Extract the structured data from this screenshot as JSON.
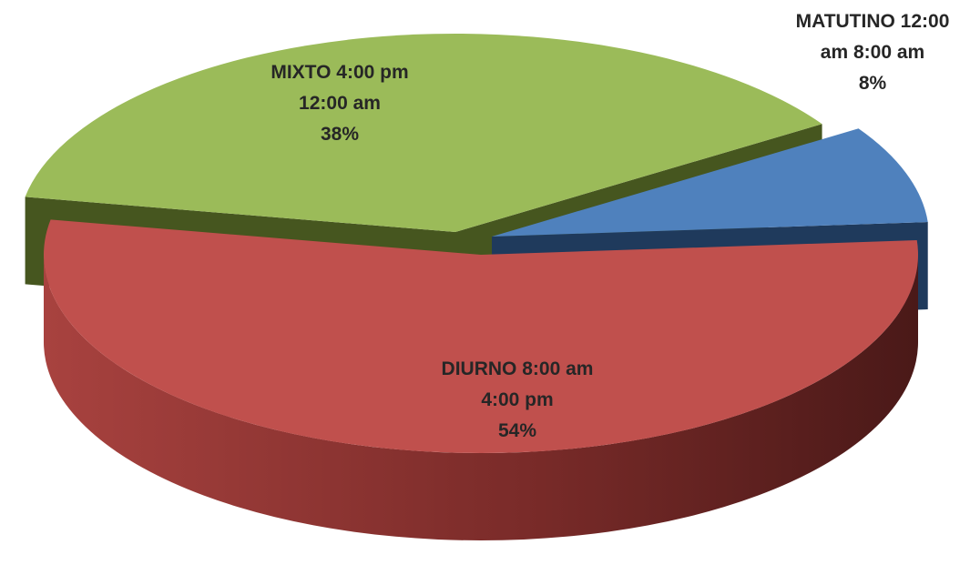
{
  "chart_data": {
    "type": "pie",
    "style": "3d-exploded",
    "slices": [
      {
        "label_lines": [
          "MATUTINO 12:00",
          "am 8:00 am",
          "8%"
        ],
        "category": "MATUTINO 12:00 am 8:00 am",
        "value": 8,
        "unit": "%",
        "color": "#4F81BD",
        "side_color": "#1F3A5C"
      },
      {
        "label_lines": [
          "DIURNO 8:00 am",
          "4:00 pm",
          "54%"
        ],
        "category": "DIURNO 8:00 am 4:00 pm",
        "value": 54,
        "unit": "%",
        "color": "#C0504D",
        "side_color": "#6E2422"
      },
      {
        "label_lines": [
          "MIXTO 4:00 pm",
          "12:00 am",
          "38%"
        ],
        "category": "MIXTO 4:00 pm 12:00 am",
        "value": 38,
        "unit": "%",
        "color": "#9BBB59",
        "side_color": "#46561F"
      }
    ]
  }
}
